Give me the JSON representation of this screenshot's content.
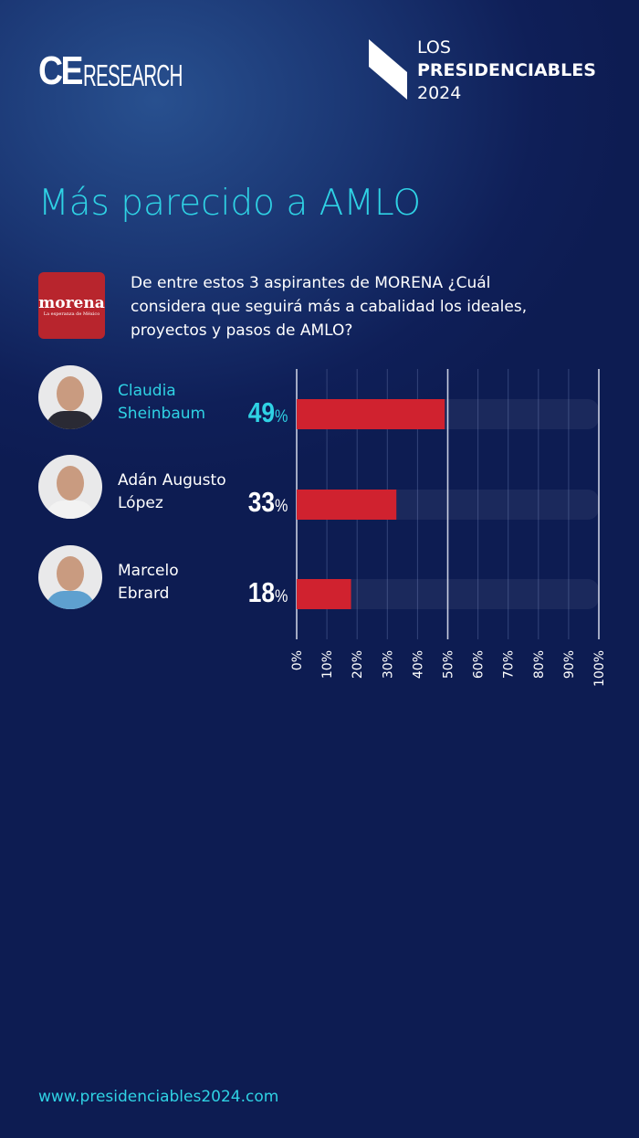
{
  "header": {
    "brand_logo": "CE RESEARCH",
    "brand_ce": "CE",
    "brand_research": "RESEARCH",
    "series_line1": "LOS",
    "series_line2": "PRESIDENCIABLES",
    "series_line3": "2024"
  },
  "title": "Más parecido a AMLO",
  "party_logo": {
    "name": "morena",
    "tagline": "La esperanza de México",
    "color": "#b8252d"
  },
  "question": "De entre estos 3 aspirantes de MORENA ¿Cuál considera que seguirá más a cabalidad los ideales, proyectos y pasos de AMLO?",
  "chart_data": {
    "type": "bar",
    "orientation": "horizontal",
    "categories": [
      "Claudia Sheinbaum",
      "Adán Augusto López",
      "Marcelo Ebrard"
    ],
    "name_lines": [
      [
        "Claudia",
        "Sheinbaum"
      ],
      [
        "Adán Augusto",
        "López"
      ],
      [
        "Marcelo",
        "Ebrard"
      ]
    ],
    "values": [
      49,
      33,
      18
    ],
    "value_labels": [
      "49",
      "33",
      "18"
    ],
    "unit": "%",
    "xlim": [
      0,
      100
    ],
    "ticks": [
      "0%",
      "10%",
      "20%",
      "30%",
      "40%",
      "50%",
      "60%",
      "70%",
      "80%",
      "90%",
      "100%"
    ],
    "grid": true,
    "bar_color": "#d0222f",
    "highlight_color": "#2fd2e4"
  },
  "footer": {
    "url": "www.presidenciables2024.com"
  }
}
